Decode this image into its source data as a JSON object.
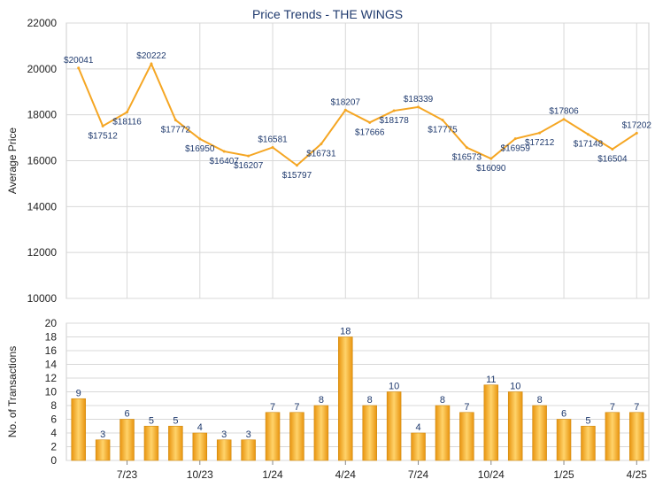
{
  "chart_data": [
    {
      "type": "line",
      "title": "Price Trends - THE WINGS",
      "ylabel": "Average Price",
      "ylim": [
        10000,
        22000
      ],
      "yticks": [
        10000,
        12000,
        14000,
        16000,
        18000,
        20000,
        22000
      ],
      "grid": true,
      "series": [
        {
          "color": "#f5a623",
          "values": [
            20041,
            17512,
            18116,
            20222,
            17772,
            16950,
            16407,
            16207,
            16581,
            15797,
            16731,
            18207,
            17666,
            18178,
            18339,
            17775,
            16573,
            16090,
            16959,
            17212,
            17806,
            17148,
            16504,
            17202
          ]
        }
      ],
      "data_labels": [
        "$20041",
        "$17512",
        "$18116",
        "$20222",
        "$17772",
        "$16950",
        "$16407",
        "$16207",
        "$16581",
        "$15797",
        "$16731",
        "$18207",
        "$17666",
        "$18178",
        "$18339",
        "$17775",
        "$16573",
        "$16090",
        "$16959",
        "$17212",
        "$17806",
        "$17148",
        "$16504",
        "$17202"
      ]
    },
    {
      "type": "bar",
      "ylabel": "No. of Transactions",
      "ylim": [
        0,
        20
      ],
      "yticks": [
        0,
        2,
        4,
        6,
        8,
        10,
        12,
        14,
        16,
        18,
        20
      ],
      "grid": true,
      "bar_color": "#f5a623",
      "values": [
        9,
        3,
        6,
        5,
        5,
        4,
        3,
        3,
        7,
        7,
        8,
        18,
        8,
        10,
        4,
        8,
        7,
        11,
        10,
        8,
        6,
        5,
        7,
        7
      ],
      "xtick_labels": [
        {
          "index": 2,
          "label": "7/23"
        },
        {
          "index": 5,
          "label": "10/23"
        },
        {
          "index": 8,
          "label": "1/24"
        },
        {
          "index": 11,
          "label": "4/24"
        },
        {
          "index": 14,
          "label": "7/24"
        },
        {
          "index": 17,
          "label": "10/24"
        },
        {
          "index": 20,
          "label": "1/25"
        },
        {
          "index": 23,
          "label": "4/25"
        }
      ]
    }
  ],
  "colors": {
    "title": "#1f3a6e",
    "axis_text": "#222222",
    "label_text": "#1f3a6e",
    "grid": "#d8d8d8",
    "bar_border": "#d08a10"
  }
}
